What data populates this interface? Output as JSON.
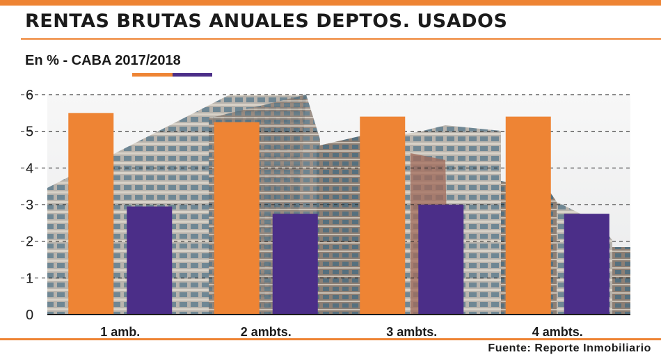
{
  "header": {
    "title": "RENTAS BRUTAS ANUALES DEPTOS. USADOS",
    "subtitle": "En % - CABA 2017/2018"
  },
  "footer": {
    "source": "Fuente: Reporte Inmobiliario"
  },
  "colors": {
    "accent": "#ee8434",
    "series_2017": "#ee8434",
    "series_2018": "#4b2e88"
  },
  "chart_data": {
    "type": "bar",
    "title": "RENTAS BRUTAS ANUALES DEPTOS. USADOS",
    "subtitle": "En % - CABA 2017/2018",
    "categories": [
      "1 amb.",
      "2 ambts.",
      "3 ambts.",
      "4 ambts."
    ],
    "series": [
      {
        "values": [
          5.5,
          5.25,
          5.4,
          5.4
        ]
      },
      {
        "values": [
          2.95,
          2.75,
          3.0,
          2.75
        ]
      }
    ],
    "ylim": [
      0,
      6
    ],
    "yticks": [
      "0",
      "1",
      "2",
      "3",
      "4",
      "5",
      "6"
    ],
    "grid": true,
    "xlabel": "",
    "ylabel": ""
  }
}
